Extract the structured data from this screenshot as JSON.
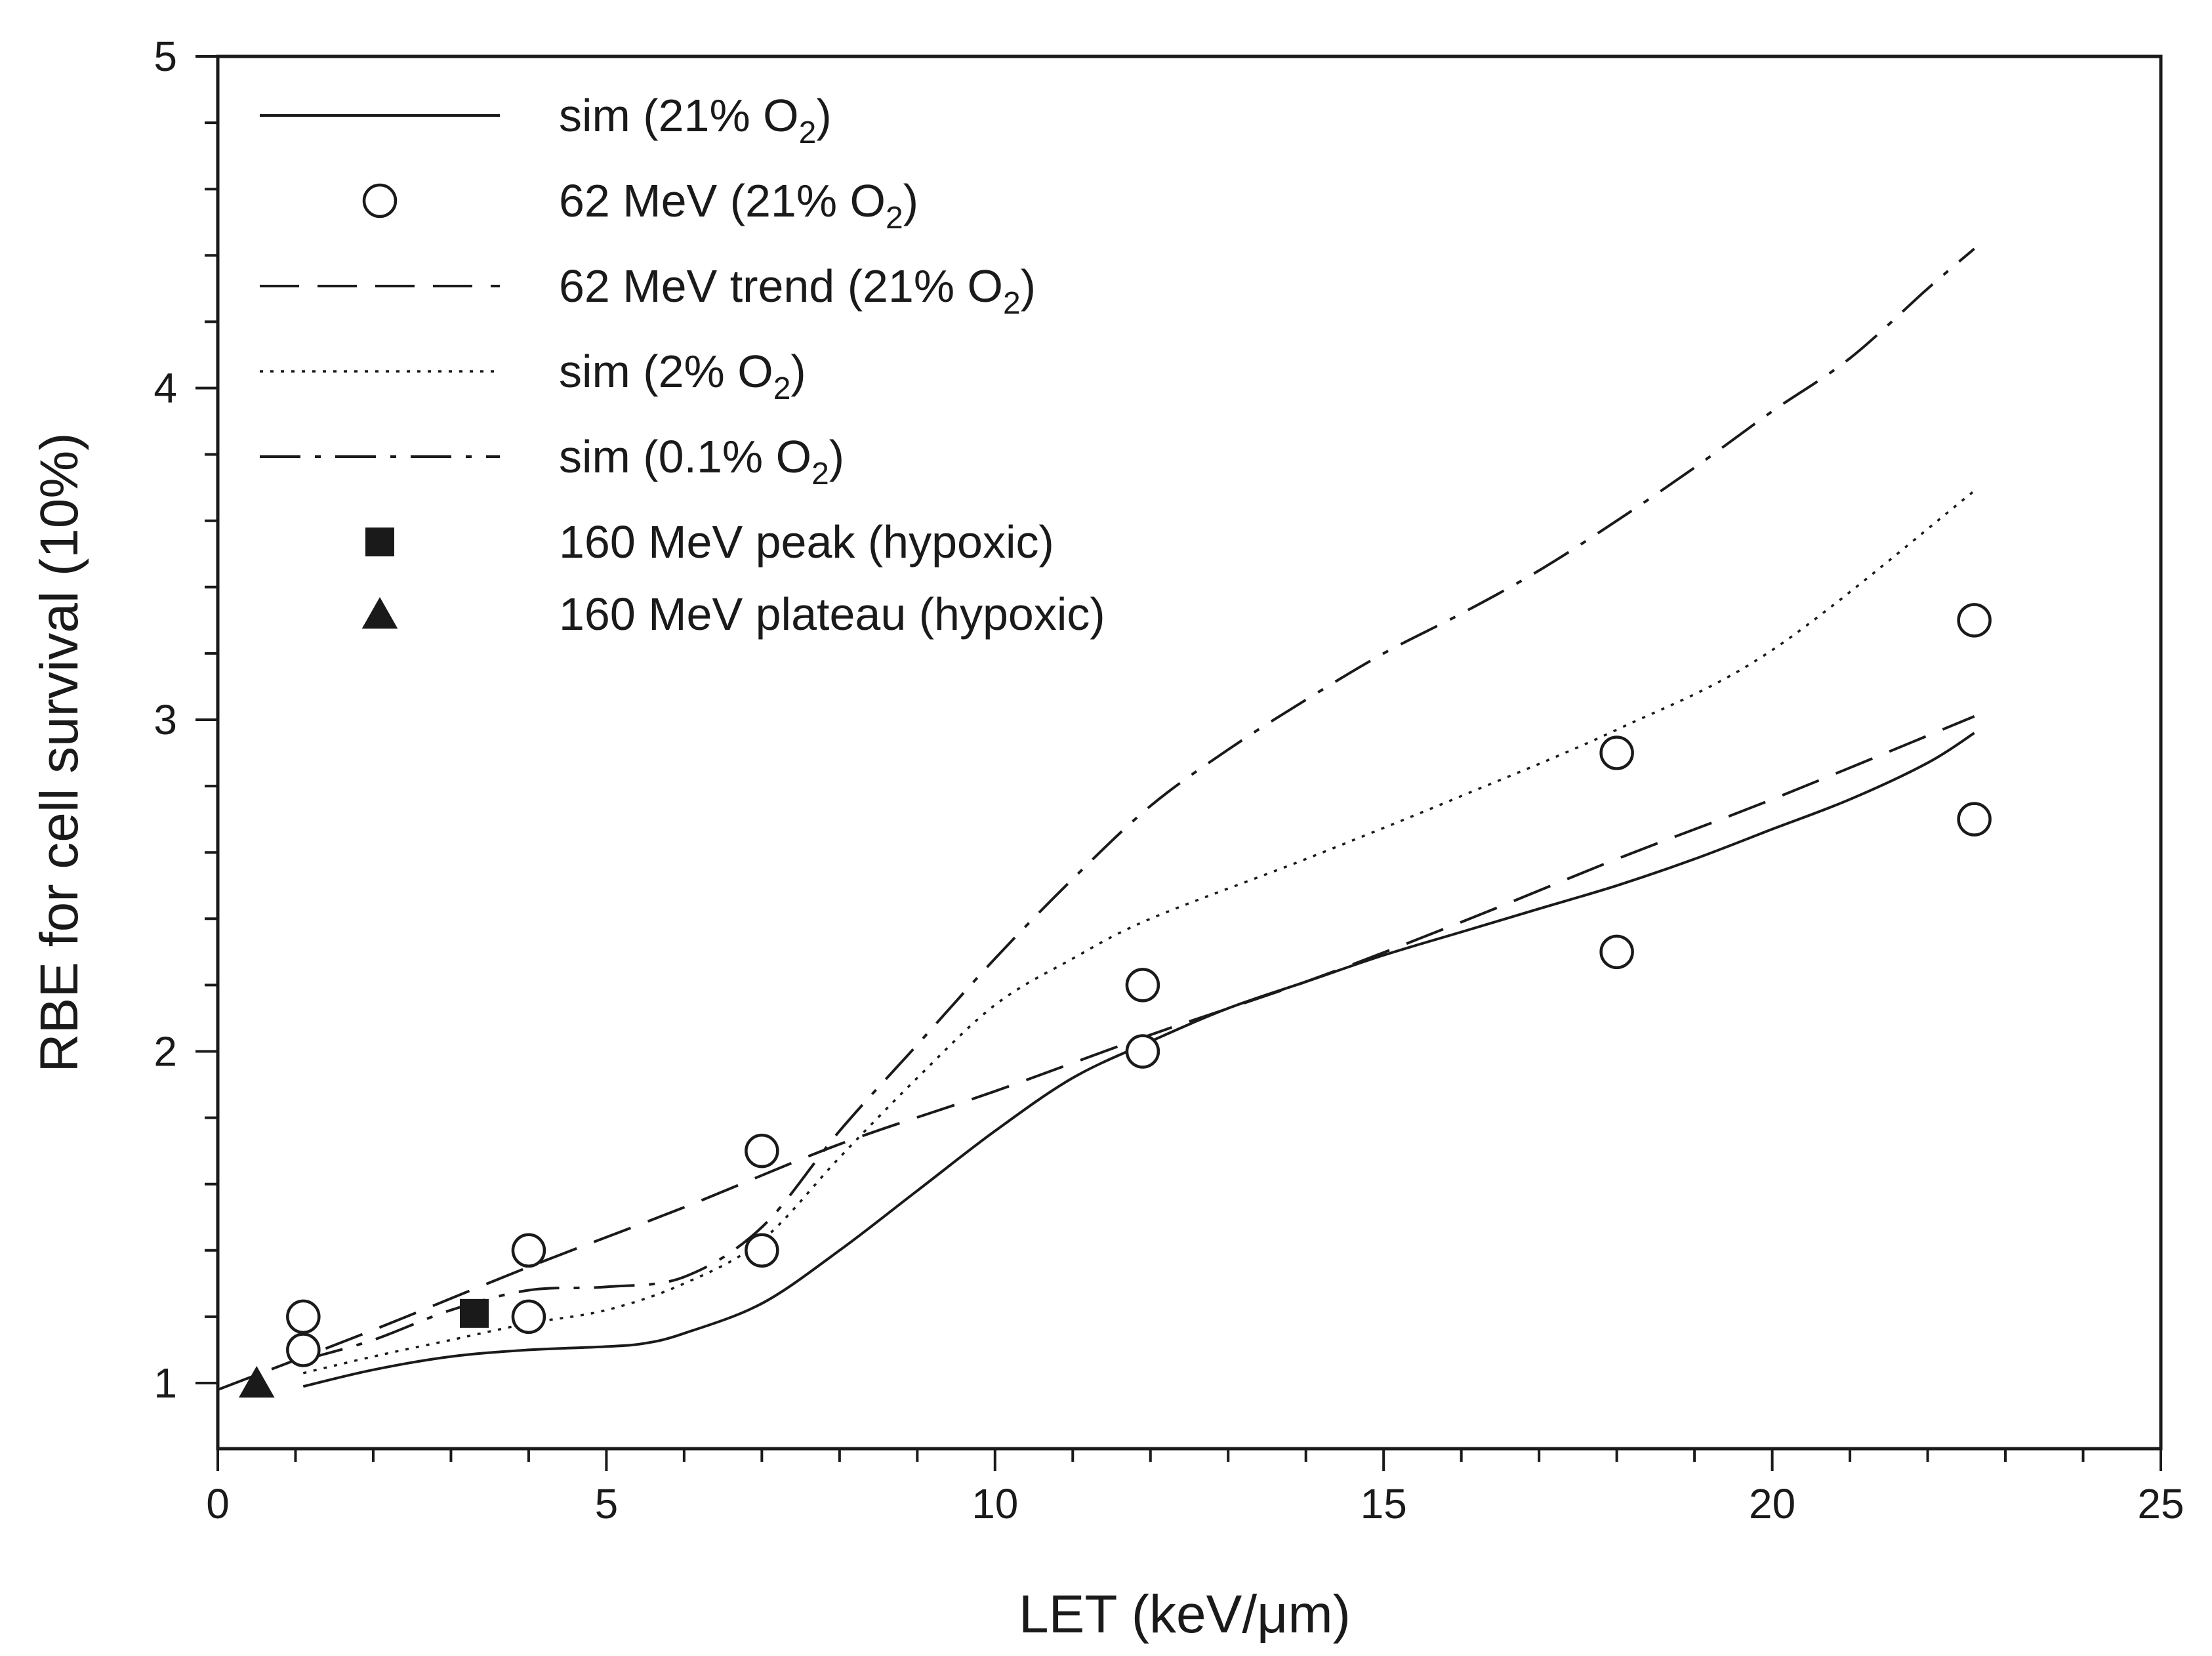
{
  "chart_data": {
    "type": "line",
    "xlabel": "LET (keV/μm)",
    "ylabel": "RBE for cell survival (10%)",
    "xlim": [
      0,
      25
    ],
    "ylim": [
      0.8,
      5
    ],
    "x_ticks": [
      0,
      5,
      10,
      15,
      20,
      25
    ],
    "x_tick_labels": [
      "0",
      "5",
      "10",
      "15",
      "20",
      "25"
    ],
    "y_ticks": [
      1,
      2,
      3,
      4,
      5
    ],
    "y_tick_labels": [
      "1",
      "2",
      "3",
      "4",
      "5"
    ],
    "x_minor_step": 1,
    "y_minor_step": 0.2,
    "grid": false,
    "legend_position": "top-left",
    "series": [
      {
        "name": "sim_21",
        "label": "sim (21% O",
        "label_sub": "2",
        "label_end": ")",
        "style": "solid",
        "x": [
          1.1,
          2,
          3,
          4,
          5,
          5.5,
          6,
          7,
          8,
          9,
          10,
          11,
          12,
          13,
          14,
          15,
          16,
          17,
          18,
          19,
          20,
          21,
          22,
          22.6
        ],
        "y": [
          0.99,
          1.04,
          1.08,
          1.1,
          1.11,
          1.12,
          1.15,
          1.24,
          1.4,
          1.58,
          1.76,
          1.92,
          2.03,
          2.13,
          2.21,
          2.29,
          2.36,
          2.43,
          2.5,
          2.58,
          2.67,
          2.76,
          2.87,
          2.96
        ]
      },
      {
        "name": "data_62MeV",
        "label": "62 MeV (21% O",
        "label_sub": "2",
        "label_end": ")",
        "style": "open-circle",
        "x": [
          1.1,
          1.1,
          4.0,
          4.0,
          7.0,
          7.0,
          11.9,
          11.9,
          18.0,
          18.0,
          22.6,
          22.6
        ],
        "y": [
          1.2,
          1.1,
          1.4,
          1.2,
          1.7,
          1.4,
          2.2,
          2.0,
          2.9,
          2.3,
          3.3,
          2.7
        ]
      },
      {
        "name": "trend_62MeV",
        "label": "62 MeV trend (21% O",
        "label_sub": "2",
        "label_end": ")",
        "style": "dashed",
        "x": [
          0,
          2,
          4,
          6,
          8,
          10,
          12,
          14,
          16,
          18,
          20,
          22.6
        ],
        "y": [
          0.98,
          1.16,
          1.35,
          1.53,
          1.72,
          1.88,
          2.05,
          2.21,
          2.39,
          2.58,
          2.76,
          3.01
        ]
      },
      {
        "name": "sim_2",
        "label": "sim (2% O",
        "label_sub": "2",
        "label_end": ")",
        "style": "dotted",
        "x": [
          1.1,
          2,
          3,
          4,
          5,
          6,
          7,
          8,
          9,
          10,
          11,
          12,
          14,
          16,
          18,
          20,
          22.6
        ],
        "y": [
          1.03,
          1.08,
          1.13,
          1.18,
          1.22,
          1.3,
          1.43,
          1.68,
          1.92,
          2.14,
          2.28,
          2.4,
          2.58,
          2.77,
          2.97,
          3.21,
          3.69
        ]
      },
      {
        "name": "sim_01",
        "label": "sim (0.1% O",
        "label_sub": "2",
        "label_end": ")",
        "style": "dash-dot",
        "x": [
          1.1,
          2,
          3,
          4,
          5,
          6,
          7,
          8,
          9,
          10,
          11,
          12,
          13,
          14,
          15,
          16,
          17,
          18,
          19,
          20,
          21,
          22,
          22.6
        ],
        "y": [
          1.07,
          1.13,
          1.22,
          1.28,
          1.29,
          1.32,
          1.47,
          1.76,
          2.02,
          2.28,
          2.52,
          2.74,
          2.91,
          3.06,
          3.2,
          3.32,
          3.45,
          3.6,
          3.76,
          3.93,
          4.09,
          4.3,
          4.42
        ]
      },
      {
        "name": "peak_160MeV",
        "label": "160 MeV peak (hypoxic)",
        "style": "filled-square",
        "x": [
          3.3
        ],
        "y": [
          1.21
        ]
      },
      {
        "name": "plateau_160MeV",
        "label": "160 MeV plateau (hypoxic)",
        "style": "filled-triangle",
        "x": [
          0.5
        ],
        "y": [
          1.0
        ]
      }
    ]
  }
}
